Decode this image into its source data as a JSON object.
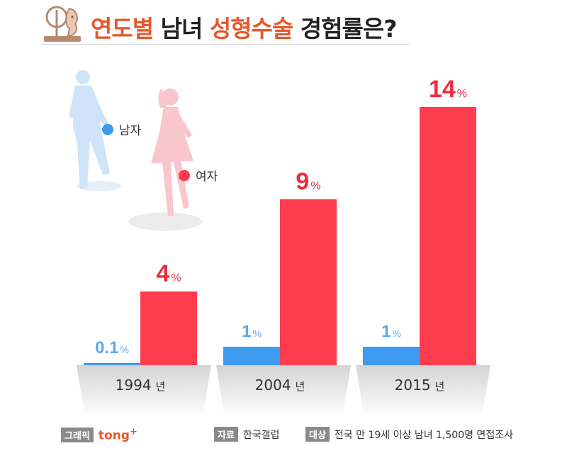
{
  "header": {
    "title_part1": "연도별",
    "title_part2": "남녀",
    "title_part3": "성형수술",
    "title_part4": "경험률은?"
  },
  "legend": {
    "male_label": "남자",
    "female_label": "여자"
  },
  "colors": {
    "male": "#3d9bf0",
    "female": "#ff3b4e",
    "male_label": "#5aaaf2",
    "female_label": "#ee2c3e",
    "accent": "#e8572a"
  },
  "chart_data": {
    "type": "bar",
    "categories": [
      "1994",
      "2004",
      "2015"
    ],
    "category_suffix": "년",
    "unit": "%",
    "series": [
      {
        "name": "남자",
        "values": [
          0.1,
          1,
          1
        ]
      },
      {
        "name": "여자",
        "values": [
          4,
          9,
          14
        ]
      }
    ],
    "value_labels": [
      [
        "0.1",
        "1",
        "1"
      ],
      [
        "4",
        "9",
        "14"
      ]
    ],
    "ylim": [
      0,
      14
    ]
  },
  "footer": {
    "graphic_tag": "그래픽",
    "brand": "tong",
    "brand_sup": "+",
    "source_tag": "자료",
    "source": "한국갤럽",
    "target_tag": "대상",
    "target": "전국 만 19세 이상 남녀 1,500명 면접조사"
  }
}
